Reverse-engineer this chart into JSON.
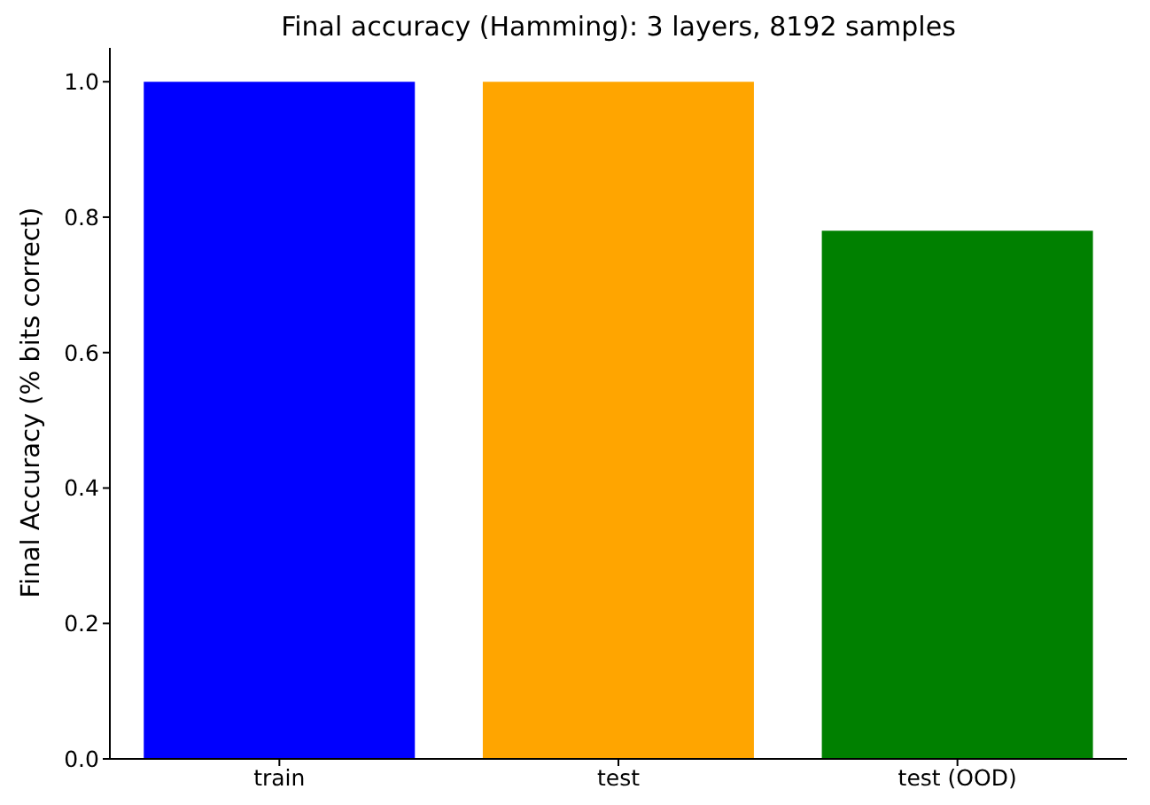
{
  "chart_data": {
    "type": "bar",
    "title": "Final accuracy (Hamming): 3 layers, 8192 samples",
    "ylabel": "Final Accuracy (% bits correct)",
    "categories": [
      "train",
      "test",
      "test (OOD)"
    ],
    "values": [
      1.0,
      1.0,
      0.78
    ],
    "colors": [
      "#0000ff",
      "#ffa500",
      "#008000"
    ],
    "ylim": [
      0,
      1.05
    ],
    "yticks": [
      {
        "value": 0,
        "label": "0.0"
      },
      {
        "value": 0.2,
        "label": "0.2"
      },
      {
        "value": 0.4,
        "label": "0.4"
      },
      {
        "value": 0.6,
        "label": "0.6"
      },
      {
        "value": 0.8,
        "label": "0.8"
      },
      {
        "value": 1,
        "label": "1.0"
      }
    ],
    "grid": false,
    "legend": false
  }
}
